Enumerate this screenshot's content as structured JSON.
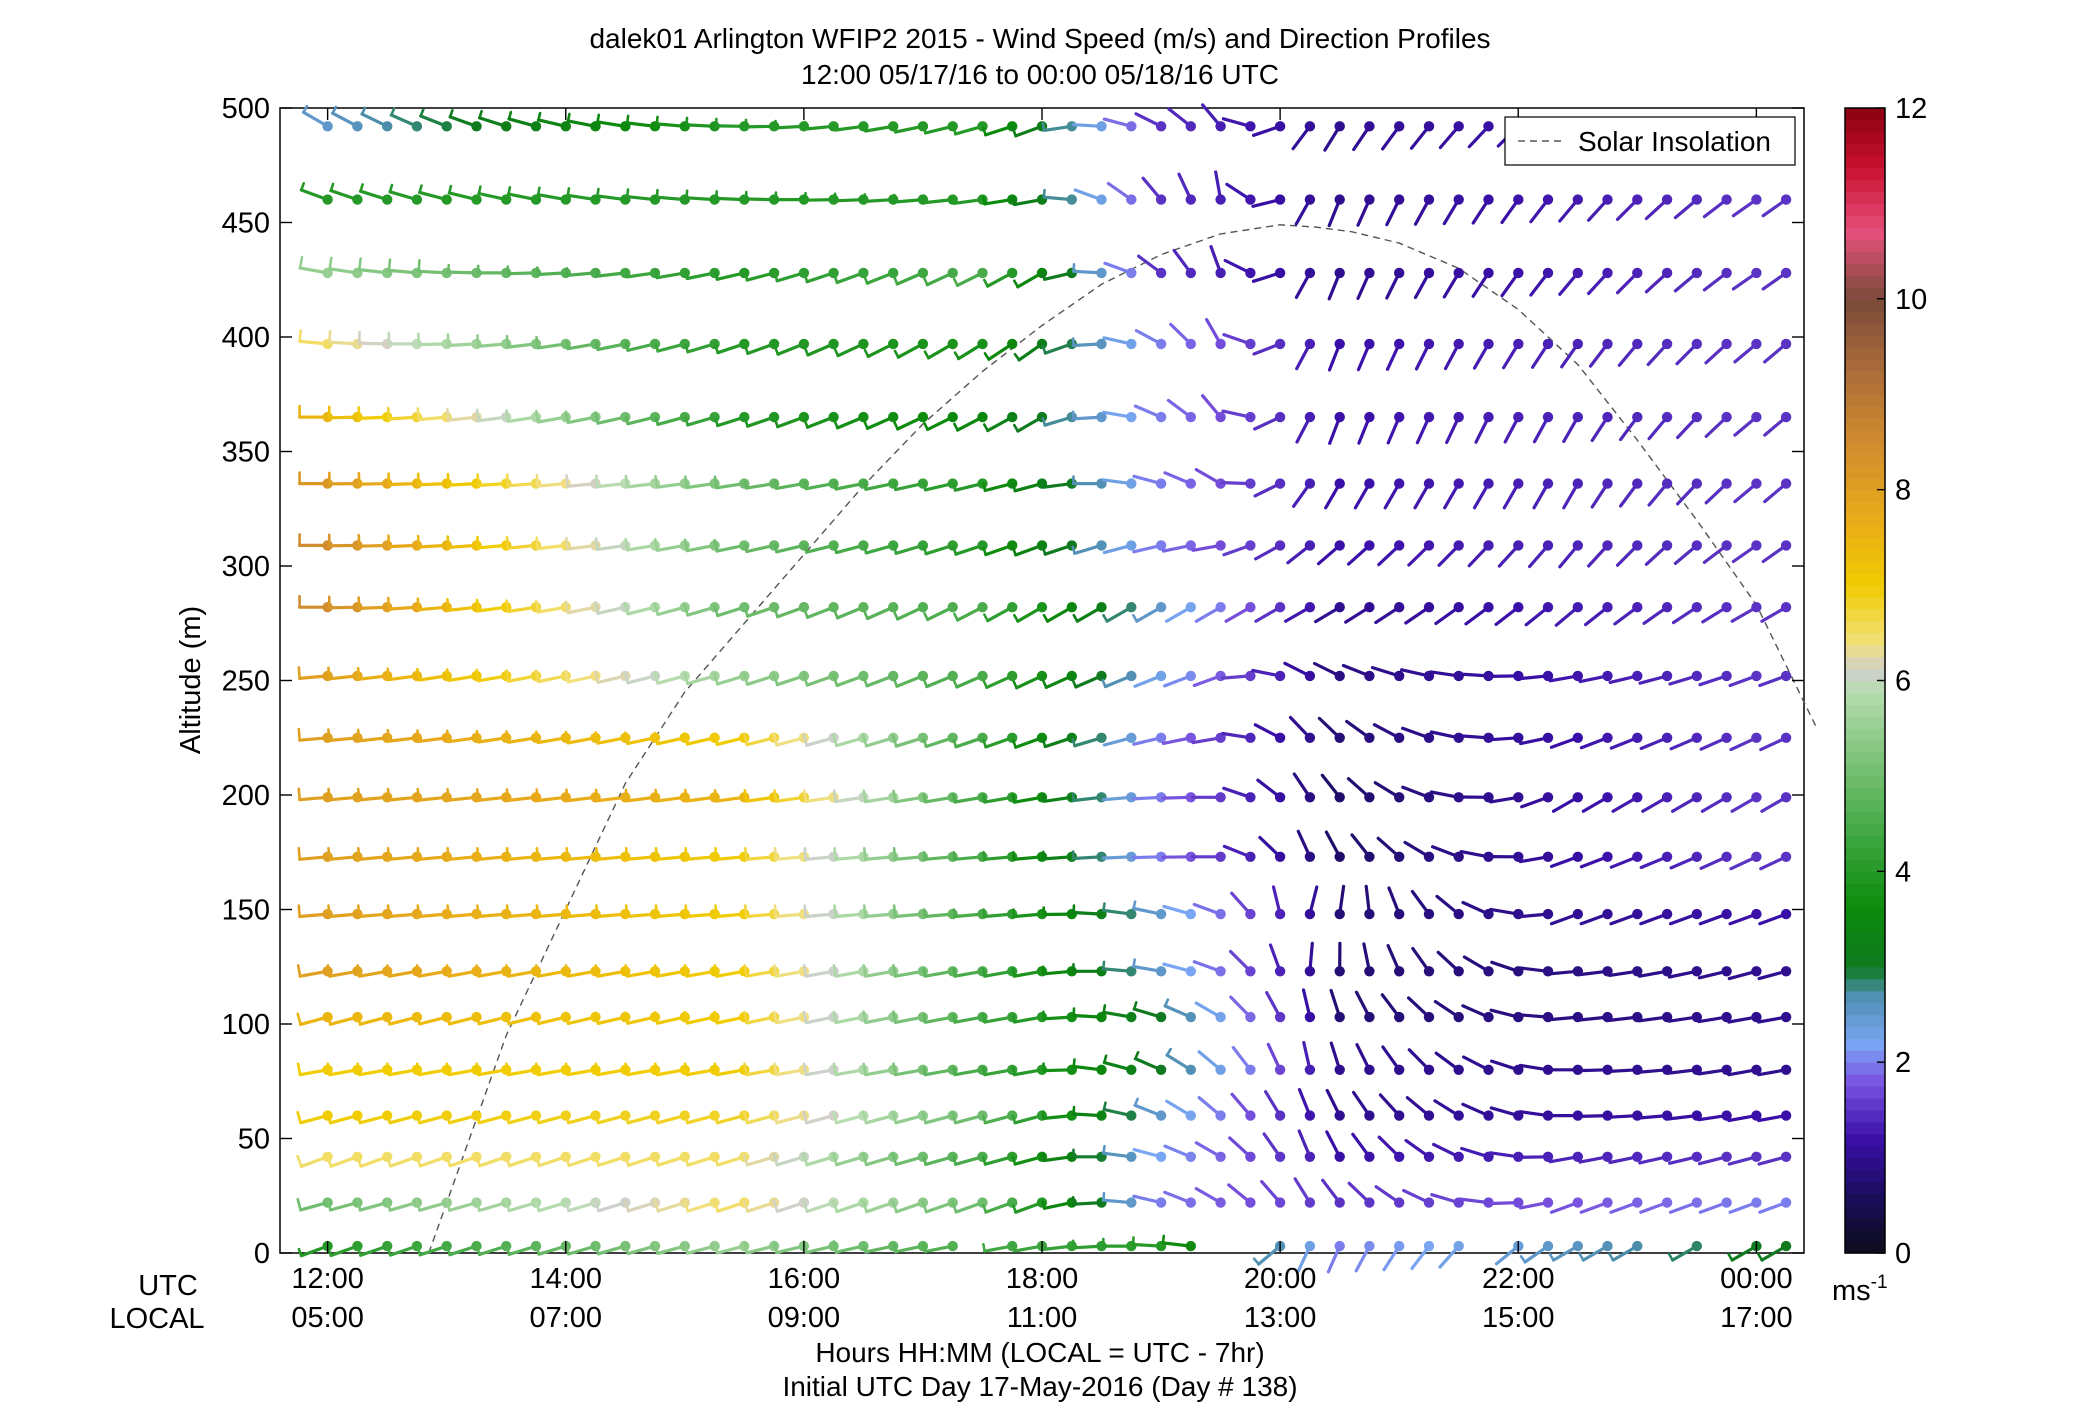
{
  "chart_data": {
    "type": "wind-barb-profile",
    "title_line1": "dalek01 Arlington WFIP2 2015 - Wind Speed (m/s) and Direction Profiles",
    "title_line2": "12:00 05/17/16 to 00:00 05/18/16  UTC",
    "ylabel": "Altitude (m)",
    "ylim": [
      0,
      500
    ],
    "yticks": [
      0,
      50,
      100,
      150,
      200,
      250,
      300,
      350,
      400,
      450,
      500
    ],
    "xlim_hours_utc": [
      11.6,
      24.4
    ],
    "x_ticks": [
      {
        "hour": 12,
        "utc": "12:00",
        "local": "05:00"
      },
      {
        "hour": 14,
        "utc": "14:00",
        "local": "07:00"
      },
      {
        "hour": 16,
        "utc": "16:00",
        "local": "09:00"
      },
      {
        "hour": 18,
        "utc": "18:00",
        "local": "11:00"
      },
      {
        "hour": 20,
        "utc": "20:00",
        "local": "13:00"
      },
      {
        "hour": 22,
        "utc": "22:00",
        "local": "15:00"
      },
      {
        "hour": 24,
        "utc": "00:00",
        "local": "17:00"
      }
    ],
    "utc_row_label": "UTC",
    "local_row_label": "LOCAL",
    "xlabel": "Hours HH:MM  (LOCAL = UTC - 7hr)",
    "footer": "Initial UTC Day 17-May-2016 (Day # 138)",
    "legend": {
      "label": "Solar Insolation",
      "placement": "top-right"
    },
    "colorbar": {
      "min": 0,
      "max": 12,
      "ticks": [
        0,
        2,
        4,
        6,
        8,
        10,
        12
      ],
      "unit_base": "ms",
      "unit_exp": "-1"
    },
    "altitudes_m": [
      3,
      22,
      42,
      60,
      80,
      103,
      123,
      148,
      173,
      199,
      225,
      252,
      282,
      309,
      336,
      365,
      397,
      428,
      460,
      492
    ],
    "time_start_hour": 12.0,
    "time_step_hour": 0.25,
    "time_count": 50,
    "wind_speed_keyframes": [
      {
        "hour": 12.0,
        "speeds": [
          4,
          5,
          6.5,
          7,
          7,
          7.5,
          8,
          8,
          8,
          8,
          8,
          8,
          8.5,
          8.5,
          8.2,
          7.5,
          6.5,
          5.5,
          4,
          2.5
        ]
      },
      {
        "hour": 15.5,
        "speeds": [
          5.5,
          6.5,
          6.5,
          6.8,
          7,
          7,
          7,
          7,
          7,
          7.5,
          7,
          5.5,
          5,
          5,
          5,
          4,
          4,
          4,
          4,
          4
        ]
      },
      {
        "hour": 17.5,
        "speeds": [
          4.5,
          5,
          4.5,
          5,
          4.5,
          4.5,
          4.5,
          4.5,
          4.5,
          4.5,
          4.5,
          4.5,
          4.5,
          4,
          4,
          3.5,
          3.8,
          4.5,
          4,
          4
        ]
      },
      {
        "hour": 19.0,
        "speeds": [
          4,
          2,
          2.2,
          2.5,
          3,
          3,
          2.5,
          2.5,
          2,
          2,
          2,
          2.3,
          2.5,
          2,
          2,
          2,
          2,
          1.5,
          1.5,
          1.5
        ]
      },
      {
        "hour": 20.5,
        "speeds": [
          2,
          1.5,
          1.2,
          1,
          1,
          0.8,
          0.8,
          0.8,
          0.7,
          0.7,
          0.8,
          0.9,
          1,
          1.2,
          1.2,
          1.2,
          1.2,
          1,
          1,
          1
        ]
      },
      {
        "hour": 24.0,
        "speeds": [
          3,
          2,
          1.5,
          1.2,
          1,
          1,
          1,
          1.2,
          1.5,
          1.5,
          1.5,
          1.5,
          1.5,
          1.5,
          1.5,
          1.5,
          1.5,
          1.5,
          1.5,
          1.5
        ]
      }
    ],
    "wind_direction_keyframes_deg": [
      {
        "hour": 12.0,
        "dirs": [
          250,
          255,
          250,
          255,
          260,
          255,
          260,
          265,
          265,
          265,
          265,
          265,
          270,
          270,
          270,
          270,
          275,
          280,
          290,
          300
        ]
      },
      {
        "hour": 18.0,
        "dirs": [
          260,
          250,
          255,
          255,
          260,
          260,
          260,
          265,
          265,
          260,
          250,
          245,
          240,
          250,
          255,
          240,
          235,
          240,
          260,
          250
        ]
      },
      {
        "hour": 19.5,
        "dirs": [
          280,
          300,
          300,
          310,
          310,
          300,
          290,
          290,
          270,
          270,
          260,
          250,
          240,
          260,
          300,
          320,
          330,
          340,
          350,
          320
        ]
      },
      {
        "hour": 20.3,
        "dirs": [
          200,
          330,
          340,
          340,
          350,
          350,
          10,
          20,
          340,
          330,
          320,
          300,
          240,
          230,
          210,
          200,
          200,
          200,
          200,
          210
        ]
      },
      {
        "hour": 22.5,
        "dirs": [
          240,
          250,
          260,
          270,
          270,
          265,
          265,
          250,
          250,
          240,
          250,
          260,
          230,
          220,
          210,
          210,
          215,
          220,
          220,
          230
        ]
      },
      {
        "hour": 24.0,
        "dirs": [
          240,
          250,
          255,
          260,
          260,
          260,
          255,
          250,
          245,
          240,
          245,
          250,
          240,
          235,
          230,
          230,
          230,
          235,
          235,
          240
        ]
      }
    ],
    "surface_gaps_hours": [
      [
        17.3,
        17.6
      ],
      [
        19.4,
        19.75
      ],
      [
        21.6,
        21.8
      ],
      [
        23.1,
        23.3
      ],
      [
        23.6,
        23.75
      ]
    ],
    "solar_insolation_curve": [
      [
        12.85,
        0
      ],
      [
        13.5,
        95
      ],
      [
        14.0,
        150
      ],
      [
        14.5,
        205
      ],
      [
        15.0,
        245
      ],
      [
        15.5,
        275
      ],
      [
        16.0,
        305
      ],
      [
        16.5,
        335
      ],
      [
        17.0,
        362
      ],
      [
        17.5,
        385
      ],
      [
        18.0,
        405
      ],
      [
        18.5,
        423
      ],
      [
        19.0,
        436
      ],
      [
        19.5,
        445
      ],
      [
        20.0,
        449
      ],
      [
        20.3,
        448
      ],
      [
        20.6,
        446
      ],
      [
        21.0,
        441
      ],
      [
        21.5,
        430
      ],
      [
        22.0,
        412
      ],
      [
        22.5,
        388
      ],
      [
        23.0,
        355
      ],
      [
        23.5,
        320
      ],
      [
        24.0,
        283
      ],
      [
        24.5,
        230
      ]
    ]
  }
}
